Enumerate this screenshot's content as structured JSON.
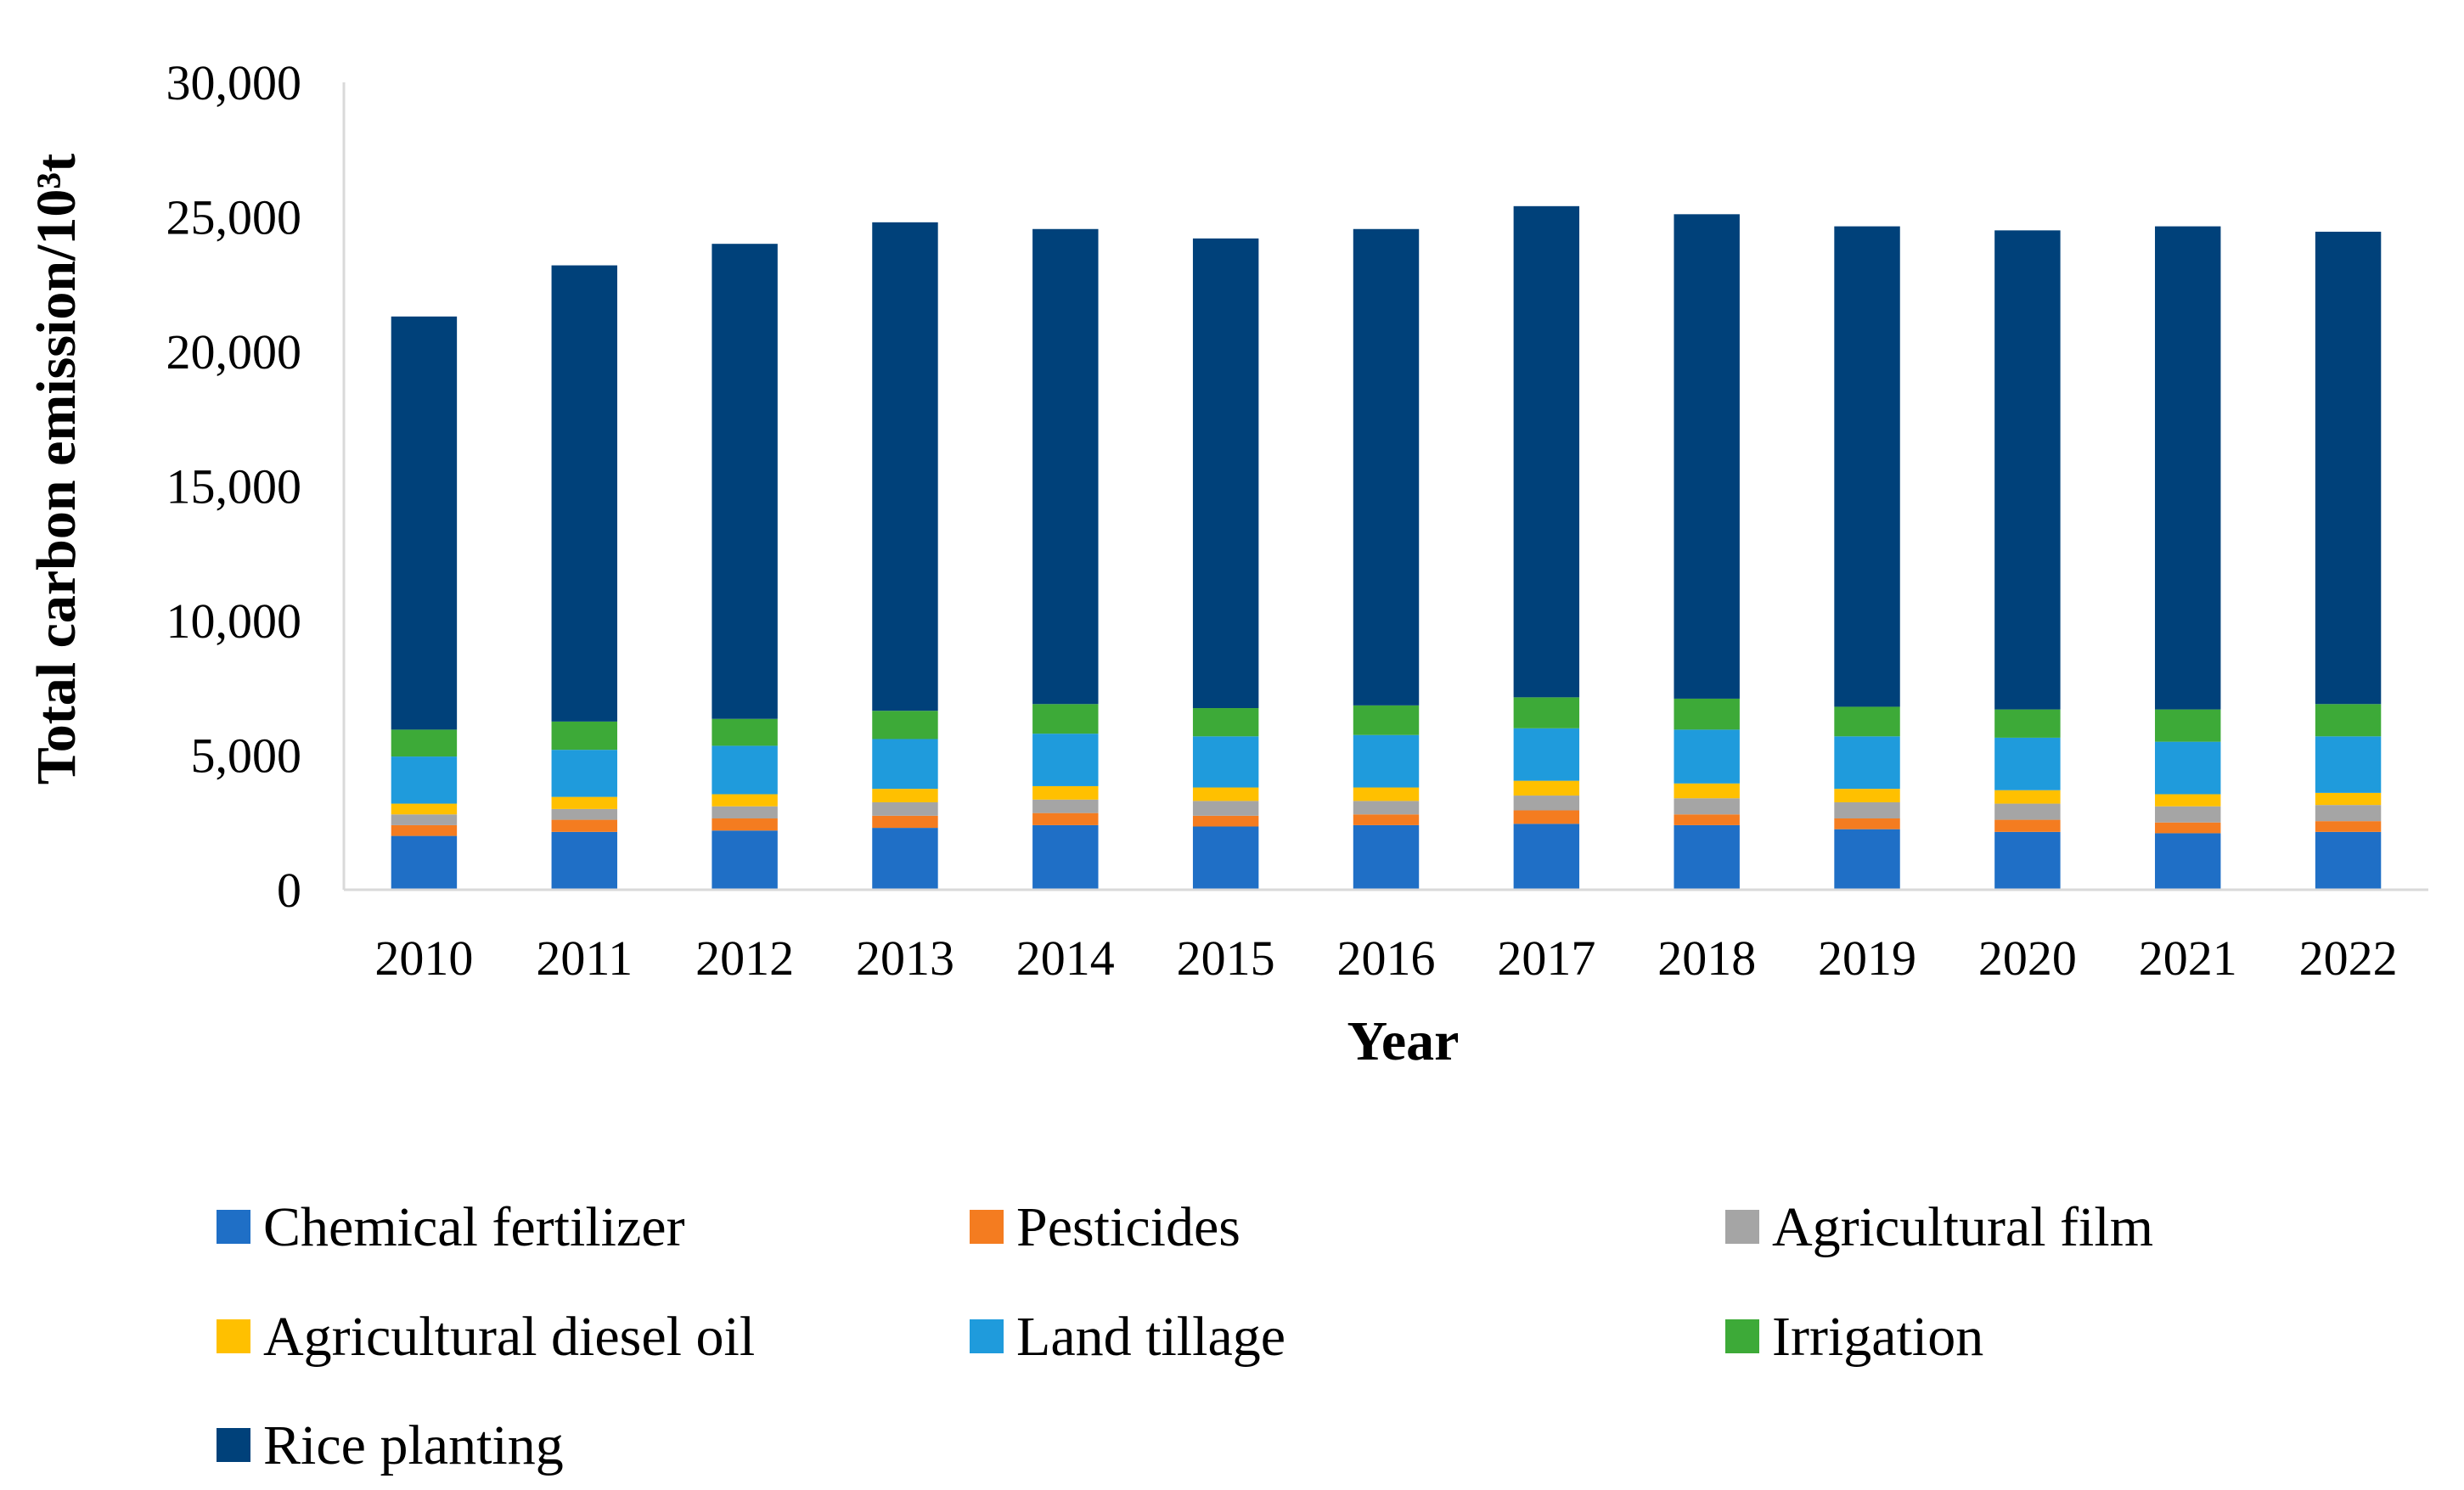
{
  "chart_data": {
    "type": "bar",
    "stacked": true,
    "title": "",
    "xlabel": "Year",
    "ylabel": "Total carbon emission/10³t",
    "ylim": [
      0,
      30000
    ],
    "yticks": [
      0,
      5000,
      10000,
      15000,
      20000,
      25000,
      30000
    ],
    "ytick_labels": [
      "0",
      "5,000",
      "10,000",
      "15,000",
      "20,000",
      "25,000",
      "30,000"
    ],
    "categories": [
      "2010",
      "2011",
      "2012",
      "2013",
      "2014",
      "2015",
      "2016",
      "2017",
      "2018",
      "2019",
      "2020",
      "2021",
      "2022"
    ],
    "legend_position": "bottom",
    "series": [
      {
        "name": "Chemical fertilizer",
        "color": "#1F6FC6",
        "values": [
          2000,
          2150,
          2200,
          2300,
          2400,
          2350,
          2400,
          2450,
          2400,
          2250,
          2150,
          2100,
          2150
        ]
      },
      {
        "name": "Pesticides",
        "color": "#F47C20",
        "values": [
          400,
          450,
          450,
          450,
          450,
          400,
          400,
          500,
          400,
          400,
          450,
          400,
          400
        ]
      },
      {
        "name": "Agricultural film",
        "color": "#A5A5A5",
        "values": [
          400,
          400,
          450,
          500,
          500,
          550,
          500,
          550,
          600,
          600,
          600,
          600,
          600
        ]
      },
      {
        "name": "Agricultural diesel oil",
        "color": "#FFC000",
        "values": [
          400,
          450,
          450,
          500,
          500,
          500,
          500,
          550,
          550,
          500,
          500,
          450,
          450
        ]
      },
      {
        "name": "Land tillage",
        "color": "#1F9BDC",
        "values": [
          1750,
          1750,
          1800,
          1850,
          1950,
          1900,
          1950,
          1950,
          2000,
          1950,
          1950,
          1950,
          2100
        ]
      },
      {
        "name": "Irrigation",
        "color": "#3DAA38",
        "values": [
          1000,
          1050,
          1000,
          1050,
          1100,
          1050,
          1100,
          1150,
          1150,
          1100,
          1050,
          1200,
          1200
        ]
      },
      {
        "name": "Rice planting",
        "color": "#00417A",
        "values": [
          15350,
          16950,
          17650,
          18150,
          17650,
          17450,
          17700,
          18250,
          18000,
          17850,
          17800,
          17950,
          17550
        ]
      }
    ]
  }
}
